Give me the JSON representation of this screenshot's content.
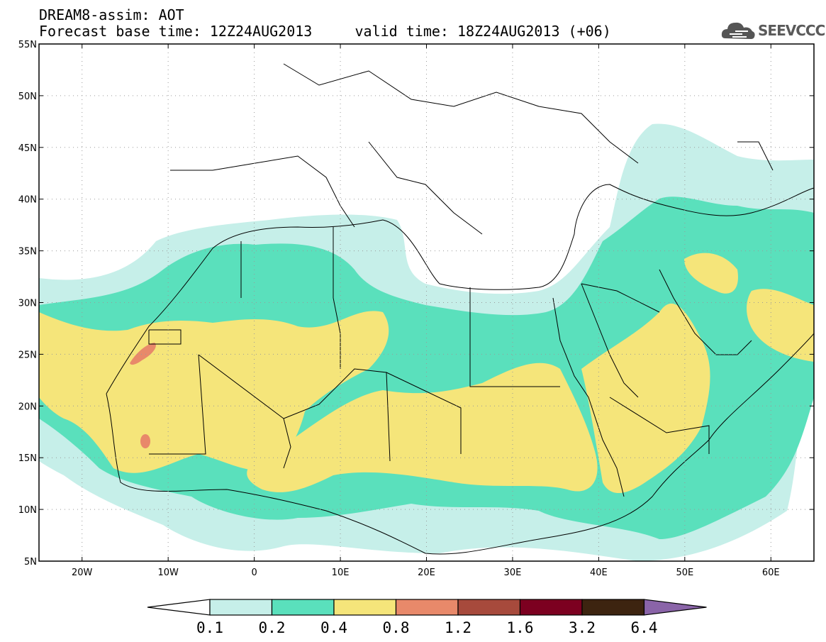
{
  "header": {
    "line1": "DREAM8-assim: AOT",
    "line2": "Forecast base time: 12Z24AUG2013     valid time: 18Z24AUG2013 (+06)"
  },
  "logo": {
    "text": "SEEVCCC",
    "icon": "cloud-icon"
  },
  "map": {
    "lon_range": [
      -25,
      65
    ],
    "lat_range": [
      5,
      55
    ],
    "lat_ticks": [
      {
        "value": 55,
        "label": "55N"
      },
      {
        "value": 50,
        "label": "50N"
      },
      {
        "value": 45,
        "label": "45N"
      },
      {
        "value": 40,
        "label": "40N"
      },
      {
        "value": 35,
        "label": "35N"
      },
      {
        "value": 30,
        "label": "30N"
      },
      {
        "value": 25,
        "label": "25N"
      },
      {
        "value": 20,
        "label": "20N"
      },
      {
        "value": 15,
        "label": "15N"
      },
      {
        "value": 10,
        "label": "10N"
      },
      {
        "value": 5,
        "label": "5N"
      }
    ],
    "lon_ticks": [
      {
        "value": -20,
        "label": "20W"
      },
      {
        "value": -10,
        "label": "10W"
      },
      {
        "value": 0,
        "label": "0"
      },
      {
        "value": 10,
        "label": "10E"
      },
      {
        "value": 20,
        "label": "20E"
      },
      {
        "value": 30,
        "label": "30E"
      },
      {
        "value": 40,
        "label": "40E"
      },
      {
        "value": 50,
        "label": "50E"
      },
      {
        "value": 60,
        "label": "60E"
      }
    ],
    "grid": true
  },
  "colorbar": {
    "colors": [
      "#ffffff",
      "#c6efe9",
      "#5ae0bc",
      "#f5e57a",
      "#e8896a",
      "#a74a3c",
      "#7c0020",
      "#3d2410",
      "#8a64a8"
    ],
    "labels": [
      "0.1",
      "0.2",
      "0.4",
      "0.8",
      "1.2",
      "1.6",
      "3.2",
      "6.4"
    ]
  }
}
